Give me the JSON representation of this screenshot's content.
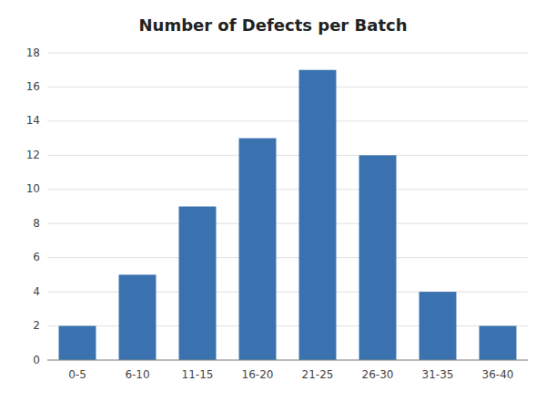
{
  "chart_data": {
    "type": "bar",
    "title": "Number of Defects per Batch",
    "categories": [
      "0-5",
      "6-10",
      "11-15",
      "16-20",
      "21-25",
      "26-30",
      "31-35",
      "36-40"
    ],
    "values": [
      2,
      5,
      9,
      13,
      17,
      12,
      4,
      2
    ],
    "color": "#3A72B0",
    "ylim": [
      0,
      18
    ],
    "yticks": [
      0,
      2,
      4,
      6,
      8,
      10,
      12,
      14,
      16,
      18
    ],
    "grid": true
  }
}
